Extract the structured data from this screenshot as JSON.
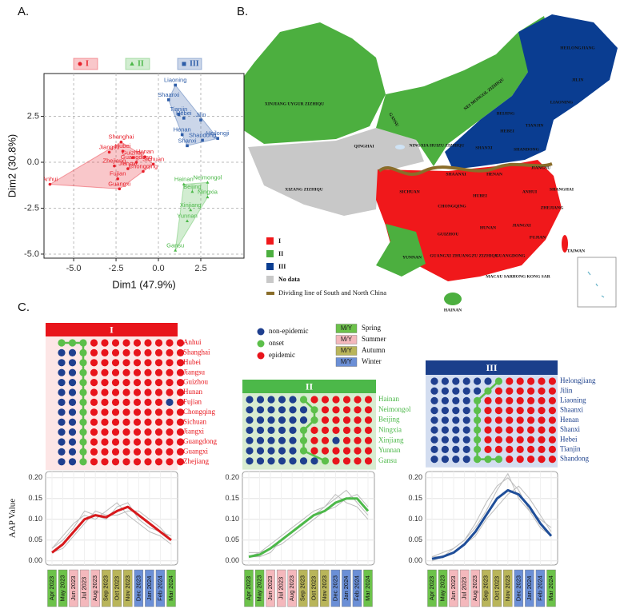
{
  "panel_labels": [
    "A.",
    "B.",
    "C."
  ],
  "chart_data": [
    {
      "type": "scatter",
      "xlabel": "Dim1 (47.9%)",
      "ylabel": "Dim2 (30.8%)",
      "xlim": [
        -6.75,
        5.05
      ],
      "ylim": [
        -5.22,
        4.83
      ],
      "xticks": [
        {
          "value": -5,
          "label": "-5.0"
        },
        {
          "value": -2.5,
          "label": "-2.5"
        },
        {
          "value": 0,
          "label": "0.0"
        },
        {
          "value": 2.5,
          "label": "2.5"
        }
      ],
      "yticks": [
        {
          "value": -5,
          "label": "-5.0"
        },
        {
          "value": -2.5,
          "label": "-2.5"
        },
        {
          "value": 0,
          "label": "0.0"
        },
        {
          "value": 2.5,
          "label": "2.5"
        }
      ],
      "grid": true,
      "series": [
        {
          "name": "I",
          "color": "#e8212c",
          "marker": "circle",
          "labels": [
            "Anhui",
            "Shanghai",
            "Hubei",
            "Jiangsu",
            "Guizhou",
            "Hunan",
            "Fujian",
            "Chongqing",
            "Sichuan",
            "Jiangxi",
            "Guangdong",
            "Guangxi",
            "Zhejiang"
          ],
          "x": [
            -6.4,
            -2.2,
            -2.1,
            -2.9,
            -1.5,
            -0.8,
            -2.4,
            -0.9,
            -0.3,
            -1.8,
            -1.3,
            -2.3,
            -2.6
          ],
          "y": [
            -1.2,
            1.1,
            0.6,
            0.55,
            0.25,
            0.3,
            -0.9,
            -0.5,
            -0.1,
            -0.35,
            0.0,
            -1.45,
            -0.2
          ]
        },
        {
          "name": "II",
          "color": "#4cb849",
          "marker": "triangle",
          "labels": [
            "Hainan",
            "Neimongol",
            "Beijing",
            "Ningxia",
            "Xinjiang",
            "Yunnan",
            "Gansu"
          ],
          "x": [
            1.5,
            2.9,
            2.0,
            2.9,
            1.9,
            1.7,
            1.0
          ],
          "y": [
            -1.2,
            -1.1,
            -1.6,
            -1.9,
            -2.6,
            -3.2,
            -4.8
          ]
        },
        {
          "name": "III",
          "color": "#2e5da8",
          "marker": "square",
          "labels": [
            "Liaoning",
            "Shaanxi",
            "Tianjin",
            "Hebei",
            "Jilin",
            "Henan",
            "Shandong",
            "Shanxi",
            "Heilongji"
          ],
          "x": [
            1.0,
            0.6,
            1.2,
            1.5,
            2.5,
            1.4,
            2.6,
            1.7,
            3.5
          ],
          "y": [
            4.2,
            3.4,
            2.6,
            2.4,
            2.3,
            1.5,
            1.2,
            0.9,
            1.3
          ]
        }
      ]
    },
    {
      "type": "line",
      "ylabel": "AAP Value",
      "categories": [
        "Apr 2023",
        "May 2023",
        "Jun 2023",
        "Jul 2023",
        "Aug 2023",
        "Sep 2023",
        "Oct 2023",
        "Nov 2023",
        "Dec 2023",
        "Jan 2024",
        "Feb 2024",
        "Mar 2024"
      ],
      "category_seasons": [
        0,
        0,
        1,
        1,
        1,
        2,
        2,
        2,
        3,
        3,
        3,
        0
      ],
      "ylim": [
        -0.01,
        0.215
      ],
      "yticks": [
        {
          "value": 0,
          "label": "0.00"
        },
        {
          "value": 0.05,
          "label": "0.05"
        },
        {
          "value": 0.1,
          "label": "0.10"
        },
        {
          "value": 0.15,
          "label": "0.15"
        },
        {
          "value": 0.2,
          "label": "0.20"
        }
      ],
      "grid": true,
      "series": [
        {
          "color": "#bdbdbd",
          "linewidth": 1,
          "values": [
            0.03,
            0.05,
            0.08,
            0.12,
            0.11,
            0.1,
            0.13,
            0.14,
            0.1,
            0.08,
            0.07,
            0.06
          ]
        },
        {
          "color": "#bdbdbd",
          "linewidth": 1,
          "values": [
            0.02,
            0.03,
            0.06,
            0.09,
            0.12,
            0.11,
            0.11,
            0.12,
            0.12,
            0.1,
            0.08,
            0.05
          ]
        },
        {
          "color": "#bdbdbd",
          "linewidth": 1,
          "values": [
            0.03,
            0.06,
            0.09,
            0.11,
            0.1,
            0.12,
            0.14,
            0.11,
            0.09,
            0.07,
            0.06,
            0.04
          ]
        },
        {
          "color": "#d7191c",
          "linewidth": 3,
          "values": [
            0.02,
            0.04,
            0.07,
            0.1,
            0.11,
            0.105,
            0.12,
            0.13,
            0.11,
            0.09,
            0.07,
            0.05
          ]
        }
      ]
    },
    {
      "type": "line",
      "categories": [
        "Apr 2023",
        "May 2023",
        "Jun 2023",
        "Jul 2023",
        "Aug 2023",
        "Sep 2023",
        "Oct 2023",
        "Nov 2023",
        "Dec 2023",
        "Jan 2024",
        "Feb 2024",
        "Mar 2024"
      ],
      "category_seasons": [
        0,
        0,
        1,
        1,
        1,
        2,
        2,
        2,
        3,
        3,
        3,
        0
      ],
      "ylim": [
        -0.01,
        0.215
      ],
      "yticks": [
        {
          "value": 0,
          "label": "0.00"
        },
        {
          "value": 0.05,
          "label": "0.05"
        },
        {
          "value": 0.1,
          "label": "0.10"
        },
        {
          "value": 0.15,
          "label": "0.15"
        },
        {
          "value": 0.2,
          "label": "0.20"
        }
      ],
      "grid": true,
      "series": [
        {
          "color": "#bdbdbd",
          "linewidth": 1,
          "values": [
            0.01,
            0.02,
            0.04,
            0.06,
            0.08,
            0.1,
            0.12,
            0.13,
            0.15,
            0.17,
            0.14,
            0.11
          ]
        },
        {
          "color": "#bdbdbd",
          "linewidth": 1,
          "values": [
            0.02,
            0.02,
            0.03,
            0.04,
            0.06,
            0.08,
            0.1,
            0.12,
            0.13,
            0.15,
            0.16,
            0.13
          ]
        },
        {
          "color": "#bdbdbd",
          "linewidth": 1,
          "values": [
            0.01,
            0.01,
            0.02,
            0.05,
            0.07,
            0.09,
            0.11,
            0.13,
            0.16,
            0.14,
            0.13,
            0.1
          ]
        },
        {
          "color": "#4cb849",
          "linewidth": 3,
          "values": [
            0.01,
            0.015,
            0.03,
            0.05,
            0.07,
            0.09,
            0.11,
            0.12,
            0.14,
            0.15,
            0.15,
            0.12
          ]
        }
      ]
    },
    {
      "type": "line",
      "categories": [
        "Apr 2023",
        "May 2023",
        "Jun 2023",
        "Jul 2023",
        "Aug 2023",
        "Sep 2023",
        "Oct 2023",
        "Nov 2023",
        "Dec 2023",
        "Jan 2024",
        "Feb 2024",
        "Mar 2024"
      ],
      "category_seasons": [
        0,
        0,
        1,
        1,
        1,
        2,
        2,
        2,
        3,
        3,
        3,
        0
      ],
      "ylim": [
        -0.01,
        0.215
      ],
      "yticks": [
        {
          "value": 0,
          "label": "0.00"
        },
        {
          "value": 0.05,
          "label": "0.05"
        },
        {
          "value": 0.1,
          "label": "0.10"
        },
        {
          "value": 0.15,
          "label": "0.15"
        },
        {
          "value": 0.2,
          "label": "0.20"
        }
      ],
      "grid": true,
      "series": [
        {
          "color": "#bdbdbd",
          "linewidth": 1,
          "values": [
            0.01,
            0.01,
            0.03,
            0.05,
            0.09,
            0.14,
            0.18,
            0.2,
            0.17,
            0.12,
            0.08,
            0.06
          ]
        },
        {
          "color": "#bdbdbd",
          "linewidth": 1,
          "values": [
            0.0,
            0.01,
            0.02,
            0.04,
            0.06,
            0.1,
            0.13,
            0.16,
            0.18,
            0.15,
            0.11,
            0.07
          ]
        },
        {
          "color": "#bdbdbd",
          "linewidth": 1,
          "values": [
            0.01,
            0.02,
            0.03,
            0.05,
            0.08,
            0.12,
            0.17,
            0.21,
            0.15,
            0.12,
            0.1,
            0.08
          ]
        },
        {
          "color": "#1f4e99",
          "linewidth": 3,
          "values": [
            0.005,
            0.01,
            0.02,
            0.04,
            0.07,
            0.11,
            0.15,
            0.17,
            0.16,
            0.13,
            0.09,
            0.06
          ]
        }
      ]
    }
  ],
  "map": {
    "legend": [
      {
        "label": "I",
        "color": "#f0181b"
      },
      {
        "label": "II",
        "color": "#4caf3f"
      },
      {
        "label": "III",
        "color": "#0a3d91"
      },
      {
        "label": "No data",
        "color": "#c8c8c8"
      }
    ],
    "divider": {
      "label": "Dividing line of South and North China",
      "color": "#8a6d2a"
    },
    "labels": [
      "XINJIANG UYGUR ZIZHIQU",
      "QINGHAI",
      "XIZANG ZIZHIQU",
      "GANSU",
      "NEI MONGOL ZIZHIQU",
      "HEILONGJIANG",
      "JILIN",
      "LIAONING",
      "BEIJING",
      "HEBEI",
      "TIANJIN",
      "NINGXIA HUIZU ZIZHIQU",
      "SHANXI",
      "SHANDONG",
      "SHAANXI",
      "HENAN",
      "JIANGSU",
      "SHANGHAI",
      "ANHUI",
      "HUBEI",
      "SICHUAN",
      "CHONGQING",
      "ZHEJIANG",
      "HUNAN",
      "JIANGXI",
      "GUIZHOU",
      "FUJIAN",
      "YUNNAN",
      "GUANGXI ZHUANGZU ZIZHIQU",
      "GUANGDONG",
      "TAIWAN",
      "HONG KONG SAR",
      "MACAU SAR",
      "HAINAN"
    ]
  },
  "timelines": {
    "legend": {
      "status": [
        {
          "label": "non-epidemic",
          "color": "#1f3f8f"
        },
        {
          "label": "onset",
          "color": "#5cbf4a"
        },
        {
          "label": "epidemic",
          "color": "#e8141b"
        }
      ],
      "season_box": "M/Y",
      "seasons": [
        {
          "label": "Spring",
          "color": "#6cc24a"
        },
        {
          "label": "Summer",
          "color": "#f4b8bc"
        },
        {
          "label": "Autumn",
          "color": "#b9b55a"
        },
        {
          "label": "Winter",
          "color": "#6b8fd6"
        }
      ]
    },
    "groups": [
      {
        "title": "I",
        "color": "#e8141b",
        "background": "#fde6e6",
        "provinces": [
          "Anhui",
          "Shanghai",
          "Hubei",
          "Jiangsu",
          "Guizhou",
          "Hunan",
          "Fujian",
          "Chongqing",
          "Sichuan",
          "Jiangxi",
          "Guangdong",
          "Guangxi",
          "Zhejiang"
        ],
        "grid": [
          [
            1,
            1,
            1,
            2,
            2,
            2,
            2,
            2,
            2,
            2,
            2,
            2
          ],
          [
            0,
            0,
            1,
            2,
            2,
            2,
            2,
            2,
            2,
            2,
            2,
            2
          ],
          [
            0,
            0,
            1,
            2,
            2,
            2,
            2,
            2,
            2,
            2,
            2,
            2
          ],
          [
            0,
            0,
            1,
            2,
            2,
            2,
            2,
            2,
            2,
            2,
            2,
            2
          ],
          [
            0,
            0,
            1,
            2,
            2,
            2,
            2,
            2,
            2,
            2,
            2,
            2
          ],
          [
            0,
            0,
            1,
            2,
            2,
            2,
            2,
            2,
            2,
            2,
            2,
            2
          ],
          [
            0,
            0,
            1,
            2,
            2,
            2,
            2,
            2,
            2,
            2,
            0,
            2
          ],
          [
            0,
            0,
            1,
            2,
            2,
            2,
            2,
            2,
            2,
            2,
            2,
            2
          ],
          [
            0,
            0,
            1,
            2,
            2,
            2,
            2,
            2,
            2,
            2,
            2,
            2
          ],
          [
            0,
            0,
            1,
            2,
            2,
            2,
            2,
            2,
            2,
            2,
            2,
            2
          ],
          [
            0,
            0,
            1,
            2,
            2,
            2,
            2,
            2,
            2,
            2,
            2,
            2
          ],
          [
            0,
            0,
            1,
            2,
            2,
            2,
            2,
            2,
            2,
            2,
            2,
            2
          ],
          [
            0,
            0,
            1,
            2,
            2,
            2,
            2,
            2,
            2,
            2,
            2,
            2
          ]
        ]
      },
      {
        "title": "II",
        "color": "#4cb849",
        "background": "#d8ecd0",
        "provinces": [
          "Hainan",
          "Neimongol",
          "Beijing",
          "Ningxia",
          "Xinjiang",
          "Yunnan",
          "Gansu"
        ],
        "grid": [
          [
            0,
            0,
            0,
            0,
            0,
            1,
            2,
            2,
            2,
            2,
            2,
            2
          ],
          [
            0,
            0,
            0,
            0,
            0,
            0,
            1,
            2,
            2,
            2,
            2,
            2
          ],
          [
            0,
            0,
            0,
            0,
            0,
            0,
            1,
            2,
            2,
            2,
            2,
            2
          ],
          [
            0,
            0,
            0,
            0,
            0,
            1,
            2,
            2,
            2,
            2,
            2,
            2
          ],
          [
            0,
            0,
            0,
            0,
            0,
            1,
            2,
            2,
            0,
            2,
            2,
            2
          ],
          [
            0,
            0,
            0,
            0,
            0,
            1,
            2,
            2,
            2,
            2,
            2,
            2
          ],
          [
            0,
            0,
            0,
            0,
            0,
            0,
            0,
            1,
            2,
            2,
            2,
            2
          ]
        ]
      },
      {
        "title": "III",
        "color": "#1b3f8b",
        "background": "#d3ddf0",
        "provinces": [
          "Helongjiang",
          "Jilin",
          "Liaoning",
          "Shaanxi",
          "Henan",
          "Shanxi",
          "Hebei",
          "Tianjin",
          "Shandong"
        ],
        "grid": [
          [
            0,
            0,
            0,
            0,
            0,
            0,
            1,
            2,
            2,
            2,
            2,
            2
          ],
          [
            0,
            0,
            0,
            0,
            0,
            1,
            2,
            2,
            2,
            2,
            2,
            2
          ],
          [
            0,
            0,
            0,
            0,
            1,
            2,
            2,
            2,
            2,
            2,
            2,
            2
          ],
          [
            0,
            0,
            0,
            0,
            1,
            2,
            2,
            2,
            2,
            2,
            2,
            2
          ],
          [
            0,
            0,
            0,
            0,
            1,
            2,
            2,
            2,
            2,
            2,
            2,
            2
          ],
          [
            0,
            0,
            0,
            0,
            1,
            2,
            2,
            2,
            2,
            2,
            2,
            2
          ],
          [
            0,
            0,
            0,
            0,
            1,
            2,
            2,
            2,
            2,
            2,
            2,
            2
          ],
          [
            0,
            0,
            0,
            0,
            1,
            2,
            2,
            2,
            2,
            2,
            2,
            2
          ],
          [
            0,
            0,
            0,
            0,
            1,
            1,
            1,
            2,
            2,
            2,
            2,
            2
          ]
        ]
      }
    ]
  }
}
